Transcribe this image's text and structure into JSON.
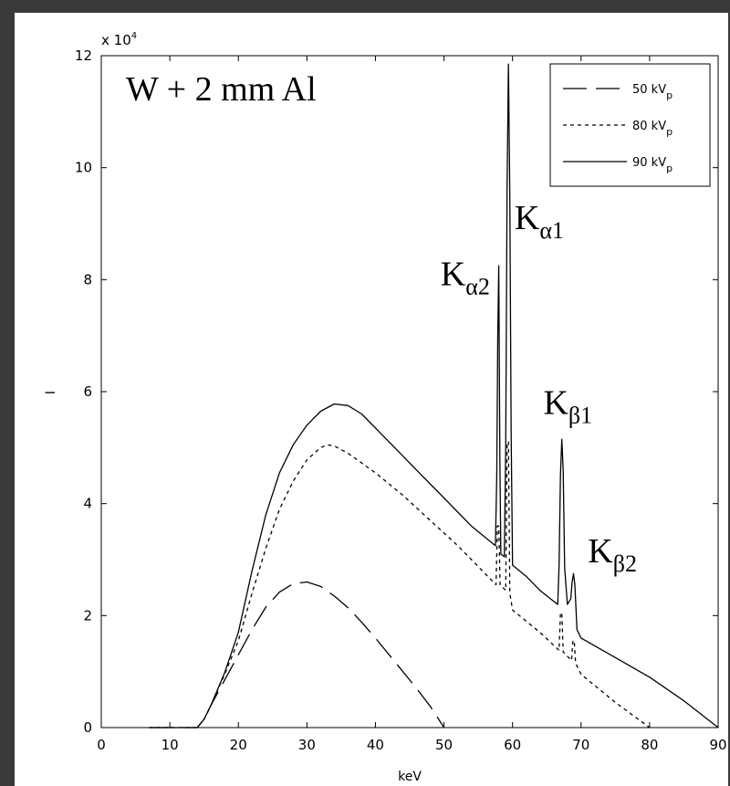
{
  "chart_data": {
    "type": "line",
    "title": "W + 2 mm Al",
    "xlabel": "keV",
    "ylabel": "I",
    "xlim": [
      0,
      90
    ],
    "ylim": [
      0,
      12
    ],
    "y_multiplier": "x 10",
    "y_multiplier_exponent": "4",
    "x_ticks": [
      0,
      10,
      20,
      30,
      40,
      50,
      60,
      70,
      80,
      90
    ],
    "y_ticks": [
      0,
      2,
      4,
      6,
      8,
      10,
      12
    ],
    "grid": false,
    "legend_position": "top-right",
    "legend_unit": "kV",
    "legend_unit_sub": "p",
    "series": [
      {
        "name": "50",
        "style": "dashed",
        "points": [
          [
            7,
            0
          ],
          [
            14,
            0
          ],
          [
            15,
            0.15
          ],
          [
            16,
            0.4
          ],
          [
            18,
            0.85
          ],
          [
            20,
            1.3
          ],
          [
            22,
            1.75
          ],
          [
            24,
            2.15
          ],
          [
            26,
            2.42
          ],
          [
            28,
            2.57
          ],
          [
            30,
            2.6
          ],
          [
            32,
            2.52
          ],
          [
            34,
            2.35
          ],
          [
            36,
            2.14
          ],
          [
            38,
            1.88
          ],
          [
            40,
            1.6
          ],
          [
            42,
            1.3
          ],
          [
            44,
            1.0
          ],
          [
            46,
            0.7
          ],
          [
            48,
            0.38
          ],
          [
            50,
            0.0
          ]
        ]
      },
      {
        "name": "80",
        "style": "dotted",
        "points": [
          [
            7,
            0
          ],
          [
            14,
            0
          ],
          [
            15,
            0.15
          ],
          [
            16,
            0.4
          ],
          [
            18,
            0.95
          ],
          [
            20,
            1.55
          ],
          [
            22,
            2.4
          ],
          [
            24,
            3.2
          ],
          [
            26,
            3.9
          ],
          [
            28,
            4.4
          ],
          [
            30,
            4.78
          ],
          [
            32,
            5.0
          ],
          [
            33,
            5.05
          ],
          [
            34,
            5.03
          ],
          [
            36,
            4.9
          ],
          [
            40,
            4.55
          ],
          [
            44,
            4.15
          ],
          [
            48,
            3.7
          ],
          [
            52,
            3.25
          ],
          [
            56,
            2.75
          ],
          [
            57.6,
            2.55
          ],
          [
            57.8,
            3.6
          ],
          [
            58.0,
            3.6
          ],
          [
            58.2,
            2.55
          ],
          [
            59.0,
            2.45
          ],
          [
            59.2,
            5.1
          ],
          [
            59.4,
            5.1
          ],
          [
            59.6,
            2.4
          ],
          [
            60,
            2.1
          ],
          [
            64,
            1.7
          ],
          [
            66.8,
            1.38
          ],
          [
            67.0,
            2.05
          ],
          [
            67.2,
            2.05
          ],
          [
            67.4,
            1.35
          ],
          [
            68.6,
            1.2
          ],
          [
            68.8,
            1.55
          ],
          [
            69.0,
            1.55
          ],
          [
            69.2,
            1.15
          ],
          [
            70,
            0.95
          ],
          [
            75,
            0.45
          ],
          [
            80,
            0.0
          ]
        ]
      },
      {
        "name": "90",
        "style": "solid",
        "points": [
          [
            7,
            0
          ],
          [
            14,
            0
          ],
          [
            15,
            0.15
          ],
          [
            16,
            0.4
          ],
          [
            18,
            0.98
          ],
          [
            20,
            1.7
          ],
          [
            22,
            2.8
          ],
          [
            24,
            3.8
          ],
          [
            26,
            4.55
          ],
          [
            28,
            5.05
          ],
          [
            30,
            5.4
          ],
          [
            32,
            5.65
          ],
          [
            34,
            5.78
          ],
          [
            36,
            5.75
          ],
          [
            38,
            5.6
          ],
          [
            42,
            5.1
          ],
          [
            46,
            4.6
          ],
          [
            50,
            4.1
          ],
          [
            54,
            3.6
          ],
          [
            57.5,
            3.25
          ],
          [
            57.7,
            4.5
          ],
          [
            57.85,
            7.0
          ],
          [
            58.0,
            8.25
          ],
          [
            58.15,
            4.8
          ],
          [
            58.3,
            3.1
          ],
          [
            58.8,
            3.05
          ],
          [
            59.0,
            5.0
          ],
          [
            59.2,
            9.65
          ],
          [
            59.4,
            11.85
          ],
          [
            59.6,
            9.5
          ],
          [
            59.8,
            5.2
          ],
          [
            60,
            2.9
          ],
          [
            62,
            2.7
          ],
          [
            64,
            2.45
          ],
          [
            66.6,
            2.2
          ],
          [
            66.8,
            2.9
          ],
          [
            67.0,
            4.5
          ],
          [
            67.2,
            5.15
          ],
          [
            67.4,
            4.6
          ],
          [
            67.6,
            2.85
          ],
          [
            68,
            2.2
          ],
          [
            68.5,
            2.3
          ],
          [
            68.7,
            2.6
          ],
          [
            68.9,
            2.75
          ],
          [
            69.1,
            2.55
          ],
          [
            69.4,
            1.75
          ],
          [
            70,
            1.6
          ],
          [
            75,
            1.25
          ],
          [
            80,
            0.9
          ],
          [
            85,
            0.48
          ],
          [
            90,
            0.0
          ]
        ]
      }
    ],
    "annotations": [
      {
        "base": "K",
        "sub": "α1",
        "x": 60.3,
        "y": 8.9
      },
      {
        "base": "K",
        "sub": "α2",
        "x": 49.5,
        "y": 7.9
      },
      {
        "base": "K",
        "sub": "β1",
        "x": 64.5,
        "y": 5.6
      },
      {
        "base": "K",
        "sub": "β2",
        "x": 71.0,
        "y": 2.95
      }
    ]
  }
}
